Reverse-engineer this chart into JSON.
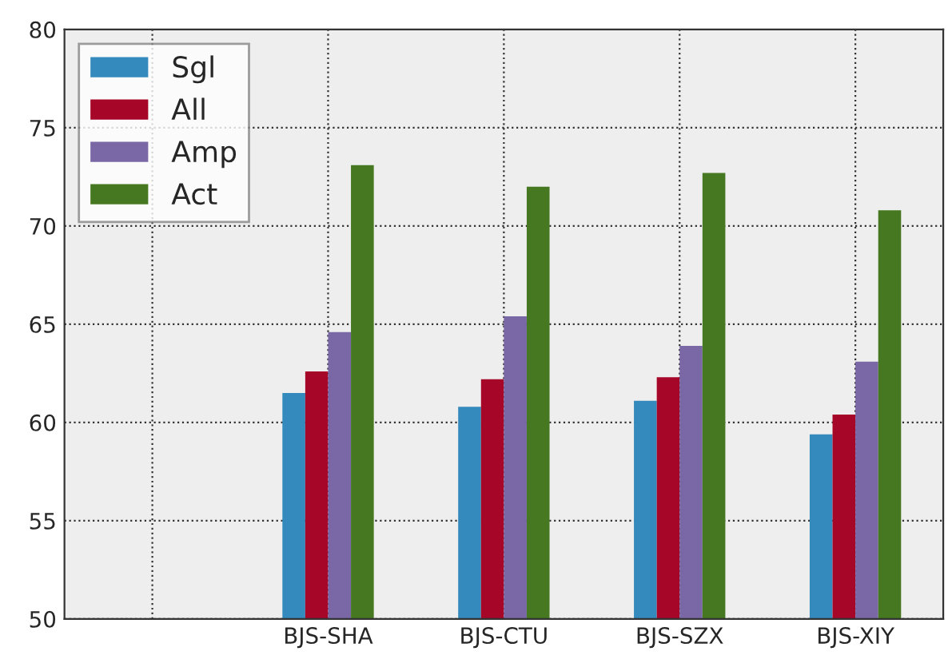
{
  "chart_data": {
    "type": "bar",
    "categories": [
      null,
      "BJS-SHA",
      "BJS-CTU",
      "BJS-SZX",
      "BJS-XIY"
    ],
    "series": [
      {
        "name": "Sgl",
        "color": "#348abd",
        "values": [
          null,
          61.5,
          60.8,
          61.1,
          59.4
        ]
      },
      {
        "name": "All",
        "color": "#a60628",
        "values": [
          null,
          62.6,
          62.2,
          62.3,
          60.4
        ]
      },
      {
        "name": "Amp",
        "color": "#7a68a6",
        "values": [
          null,
          64.6,
          65.4,
          63.9,
          63.1
        ]
      },
      {
        "name": "Act",
        "color": "#467821",
        "values": [
          null,
          73.1,
          72.0,
          72.7,
          70.8
        ]
      }
    ],
    "ylim": [
      50,
      80
    ],
    "yticks": [
      50,
      55,
      60,
      65,
      70,
      75,
      80
    ],
    "grid": true,
    "legend": "top left"
  }
}
